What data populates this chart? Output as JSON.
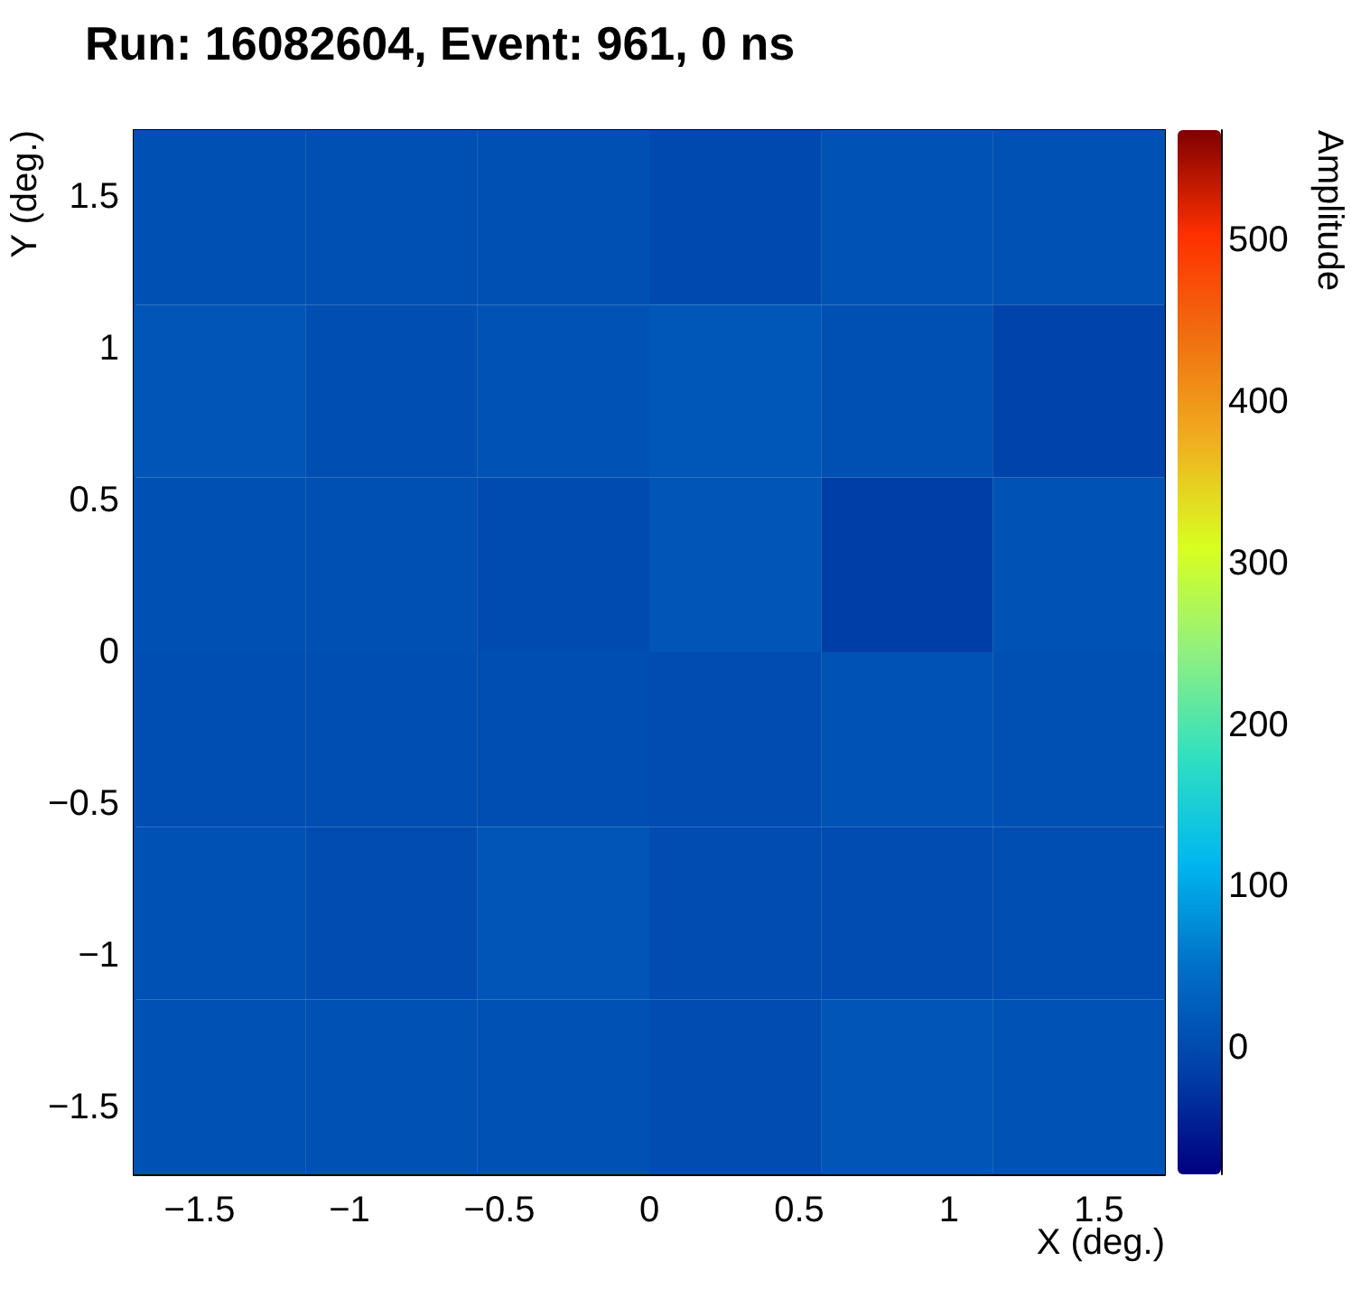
{
  "chart_data": {
    "type": "heatmap",
    "title": "Run: 16082604, Event: 961, 0 ns",
    "xlabel": "X (deg.)",
    "ylabel": "Y (deg.)",
    "clabel": "Amplitude",
    "x": [
      -1.43,
      -0.86,
      -0.29,
      0.29,
      0.86,
      1.43
    ],
    "y": [
      1.43,
      0.86,
      0.29,
      -0.29,
      -0.86,
      -1.43
    ],
    "cells": [
      [
        8,
        8,
        8,
        0,
        12,
        10
      ],
      [
        15,
        5,
        12,
        18,
        8,
        -8
      ],
      [
        8,
        8,
        2,
        15,
        -15,
        12
      ],
      [
        5,
        5,
        5,
        3,
        12,
        8
      ],
      [
        10,
        3,
        15,
        3,
        3,
        5
      ],
      [
        10,
        10,
        10,
        3,
        15,
        12
      ]
    ],
    "xlim": [
      -1.72,
      1.72
    ],
    "ylim": [
      -1.72,
      1.72
    ],
    "xticks": [
      -1.5,
      -1,
      -0.5,
      0,
      0.5,
      1,
      1.5
    ],
    "yticks": [
      -1.5,
      -1,
      -0.5,
      0,
      0.5,
      1,
      1.5
    ],
    "clim": [
      -78,
      568
    ],
    "cticks": [
      0,
      100,
      200,
      300,
      400,
      500
    ],
    "grid": false
  }
}
